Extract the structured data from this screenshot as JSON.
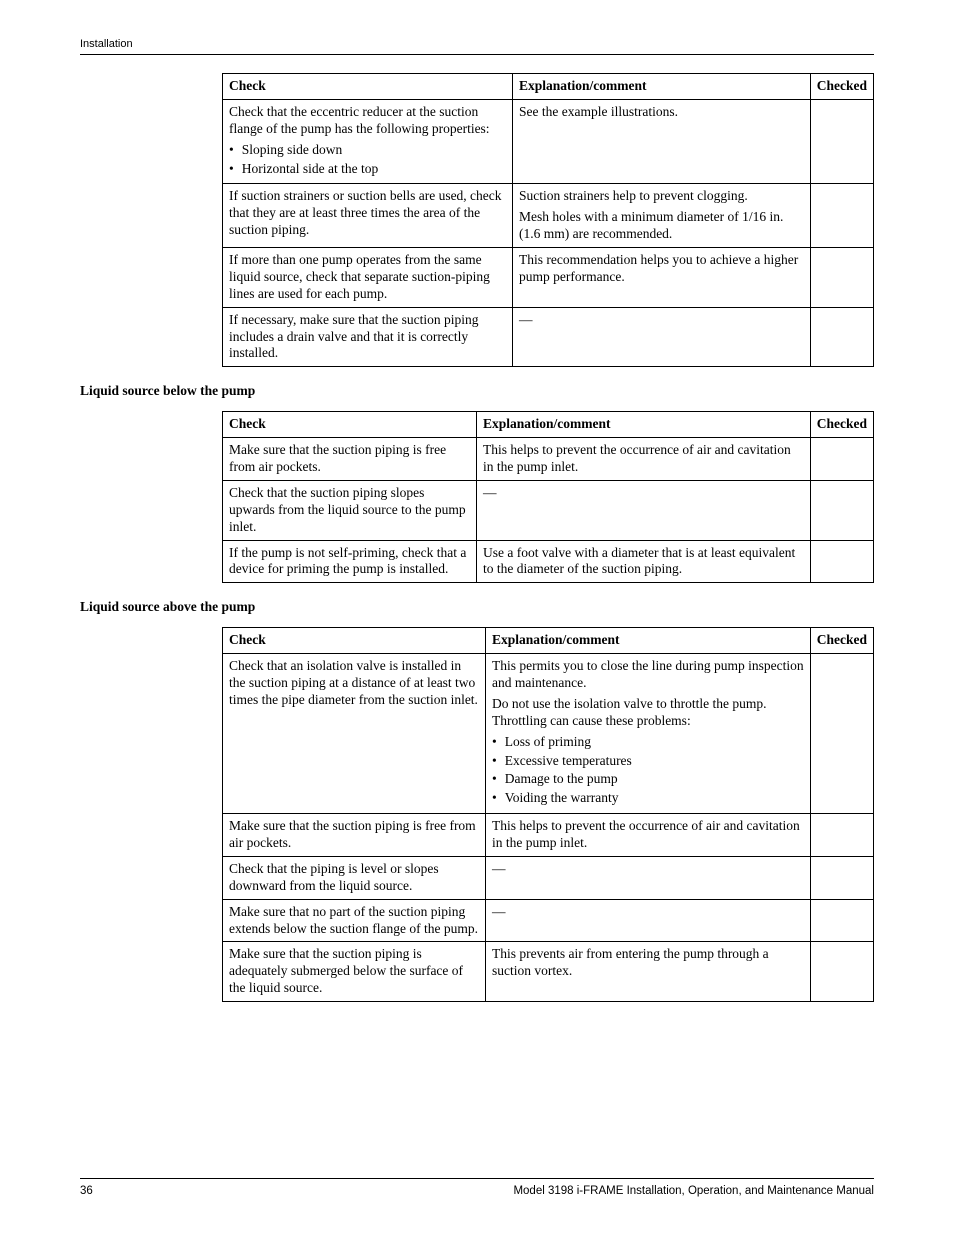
{
  "header": {
    "section_label": "Installation"
  },
  "table1": {
    "headers": {
      "check": "Check",
      "explanation": "Explanation/comment",
      "checked": "Checked"
    },
    "rows": [
      {
        "check_intro": "Check that the eccentric reducer at the suction flange of the pump has the following properties:",
        "check_bullets": [
          "Sloping side down",
          "Horizontal side at the top"
        ],
        "explanation": "See the example illustrations."
      },
      {
        "check": "If suction strainers or suction bells are used, check that they are at least three times the area of the suction piping.",
        "explanation_p1": "Suction strainers help to prevent clogging.",
        "explanation_p2": "Mesh holes with a minimum diameter of 1/16 in. (1.6 mm) are recommended."
      },
      {
        "check": "If more than one pump operates from the same liquid source, check that separate suction-piping lines are used for each pump.",
        "explanation": "This recommendation helps you to achieve a higher pump performance."
      },
      {
        "check": "If necessary, make sure that the suction piping includes a drain valve and that it is correctly installed.",
        "explanation": "—"
      }
    ]
  },
  "heading_below": "Liquid source below the pump",
  "table2": {
    "headers": {
      "check": "Check",
      "explanation": "Explanation/comment",
      "checked": "Checked"
    },
    "rows": [
      {
        "check": "Make sure that the suction piping is free from air pockets.",
        "explanation": "This helps to prevent the occurrence of air and cavitation in the pump inlet."
      },
      {
        "check": "Check that the suction piping slopes upwards from the liquid source to the pump inlet.",
        "explanation": "—"
      },
      {
        "check": "If the pump is not self-priming, check that a device for priming the pump is installed.",
        "explanation": "Use a foot valve with a diameter that is at least equivalent to the diameter of the suction piping."
      }
    ]
  },
  "heading_above": "Liquid source above the pump",
  "table3": {
    "headers": {
      "check": "Check",
      "explanation": "Explanation/comment",
      "checked": "Checked"
    },
    "rows": [
      {
        "check": "Check that an isolation valve is installed in the suction piping at a distance of at least two times the pipe diameter from the suction inlet.",
        "explanation_p1": "This permits you to close the line during pump inspection and maintenance.",
        "explanation_p2": "Do not use the isolation valve to throttle the pump. Throttling can cause these problems:",
        "explanation_bullets": [
          "Loss of priming",
          "Excessive temperatures",
          "Damage to the pump",
          "Voiding the warranty"
        ]
      },
      {
        "check": "Make sure that the suction piping is free from air pockets.",
        "explanation": "This helps to prevent the occurrence of air and cavitation in the pump inlet."
      },
      {
        "check": "Check that the piping is level or slopes downward from the liquid source.",
        "explanation": "—"
      },
      {
        "check": "Make sure that no part of the suction piping extends below the suction flange of the pump.",
        "explanation": "—"
      },
      {
        "check": "Make sure that the suction piping is adequately submerged below the surface of the liquid source.",
        "explanation": "This prevents air from entering the pump through a suction vortex."
      }
    ]
  },
  "footer": {
    "page_number": "36",
    "doc_title": "Model 3198 i-FRAME Installation, Operation, and Maintenance Manual"
  }
}
